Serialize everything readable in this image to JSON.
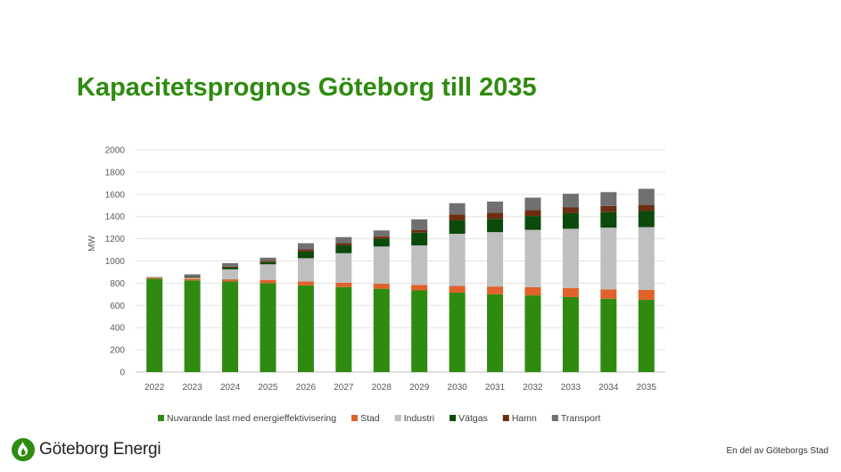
{
  "slide": {
    "title": "Kapacitetsprognos Göteborg till 2035",
    "brand": "Göteborg Energi",
    "footer": "En del av Göteborgs Stad"
  },
  "chart_data": {
    "type": "bar",
    "stacked": true,
    "title": "",
    "xlabel": "",
    "ylabel": "MW",
    "ylim": [
      0,
      2000
    ],
    "yticks": [
      0,
      200,
      400,
      600,
      800,
      1000,
      1200,
      1400,
      1600,
      1800,
      2000
    ],
    "grid": true,
    "legend_position": "bottom",
    "categories": [
      "2022",
      "2023",
      "2024",
      "2025",
      "2026",
      "2027",
      "2028",
      "2029",
      "2030",
      "2031",
      "2032",
      "2033",
      "2034",
      "2035"
    ],
    "series": [
      {
        "name": "Nuvarande last med energieffektivisering",
        "color": "#2e8b0f",
        "values": [
          840,
          825,
          815,
          800,
          780,
          765,
          750,
          735,
          715,
          700,
          690,
          675,
          660,
          650
        ]
      },
      {
        "name": "Stad",
        "color": "#e0612a",
        "values": [
          10,
          15,
          20,
          30,
          35,
          40,
          45,
          50,
          60,
          70,
          75,
          80,
          85,
          90
        ]
      },
      {
        "name": "Industri",
        "color": "#bfbfbf",
        "values": [
          0,
          10,
          90,
          140,
          210,
          265,
          335,
          355,
          470,
          490,
          515,
          535,
          555,
          565
        ]
      },
      {
        "name": "Vätgas",
        "color": "#0b4a0b",
        "values": [
          0,
          5,
          15,
          20,
          60,
          70,
          70,
          115,
          120,
          120,
          125,
          140,
          140,
          145
        ]
      },
      {
        "name": "Hamn",
        "color": "#6b2e12",
        "values": [
          0,
          5,
          10,
          10,
          20,
          20,
          20,
          25,
          55,
          55,
          55,
          55,
          55,
          55
        ]
      },
      {
        "name": "Transport",
        "color": "#707070",
        "values": [
          5,
          20,
          30,
          30,
          55,
          55,
          55,
          95,
          100,
          100,
          110,
          120,
          125,
          145
        ]
      }
    ]
  }
}
